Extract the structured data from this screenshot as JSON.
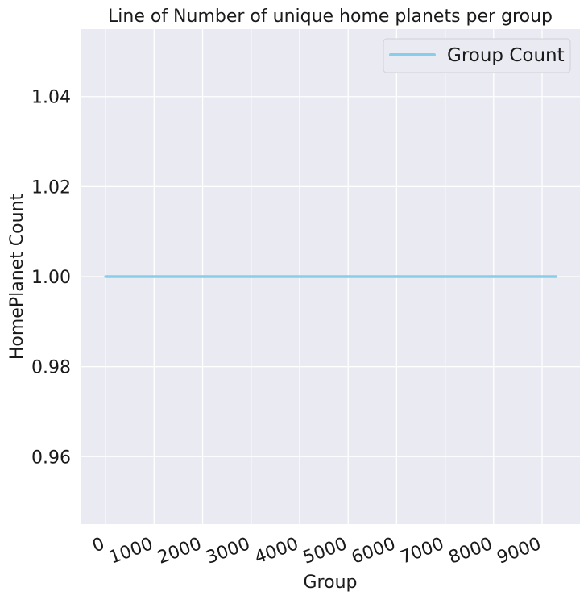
{
  "chart_data": {
    "type": "line",
    "title": "Line of Number of unique home planets per group",
    "xlabel": "Group",
    "ylabel": "HomePlanet Count",
    "xlim": [
      -500,
      9780
    ],
    "ylim": [
      0.945,
      1.055
    ],
    "xticks": [
      0,
      1000,
      2000,
      3000,
      4000,
      5000,
      6000,
      7000,
      8000,
      9000
    ],
    "xtick_labels": [
      "0",
      "1000",
      "2000",
      "3000",
      "4000",
      "5000",
      "6000",
      "7000",
      "8000",
      "9000"
    ],
    "yticks": [
      0.96,
      0.98,
      1.0,
      1.02,
      1.04
    ],
    "ytick_labels": [
      "0.96",
      "0.98",
      "1.00",
      "1.02",
      "1.04"
    ],
    "grid": true,
    "legend_position": "top-right",
    "series": [
      {
        "name": "Group Count",
        "color": "#87CEEB",
        "x": [
          0,
          9280
        ],
        "y": [
          1.0,
          1.0
        ]
      }
    ]
  },
  "colors": {
    "plot_background": "#EAEAF2",
    "grid": "#FFFFFF"
  }
}
